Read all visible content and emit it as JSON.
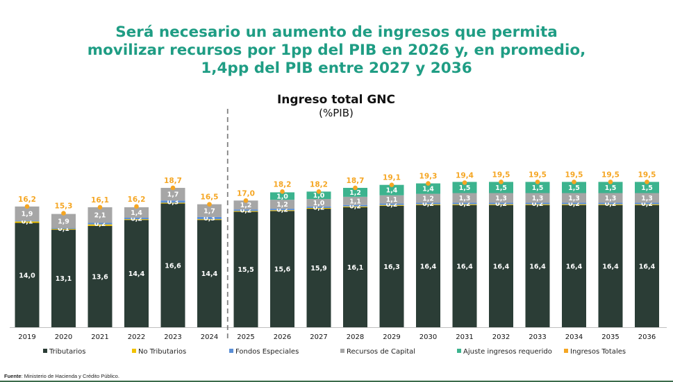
{
  "headline": {
    "lines": [
      "Será necesario un aumento de ingresos que permita",
      "movilizar recursos por 1pp del PIB en 2026 y, en promedio,",
      "1,4pp del PIB entre 2027 y 2036"
    ]
  },
  "footer": {
    "label": "Fuente",
    "text": ": Ministerio de Hacienda y Crédito Público."
  },
  "colors": {
    "headline": "#1f9d84",
    "tributarios": "#2b3d36",
    "no_tributarios": "#f2c200",
    "fondos": "#5b8fd6",
    "capital": "#a6a6a6",
    "ajuste": "#3cb38e",
    "totales": "#f5a623"
  },
  "chart_data": {
    "type": "bar",
    "stacked": true,
    "title": "Ingreso total GNC",
    "subtitle": "(%PIB)",
    "xlabel": "",
    "ylabel": "",
    "ylim": [
      0,
      21
    ],
    "grid": false,
    "legend_position": "bottom",
    "categories": [
      "2019",
      "2020",
      "2021",
      "2022",
      "2023",
      "2024",
      "2025",
      "2026",
      "2027",
      "2028",
      "2029",
      "2030",
      "2031",
      "2032",
      "2033",
      "2034",
      "2035",
      "2036"
    ],
    "series": [
      {
        "name": "Tributarios",
        "key": "tributarios",
        "values": [
          14.0,
          13.1,
          13.6,
          14.4,
          16.6,
          14.4,
          15.5,
          15.6,
          15.9,
          16.1,
          16.3,
          16.4,
          16.4,
          16.4,
          16.4,
          16.4,
          16.4,
          16.4
        ],
        "labels": [
          "14,0",
          "13,1",
          "13,6",
          "14,4",
          "16,6",
          "14,4",
          "15,5",
          "15,6",
          "15,9",
          "16,1",
          "16,3",
          "16,4",
          "16,4",
          "16,4",
          "16,4",
          "16,4",
          "16,4",
          "16,4"
        ]
      },
      {
        "name": "No Tributarios",
        "key": "no_tributarios",
        "values": [
          0.2,
          0.1,
          0.2,
          0.1,
          0.1,
          0.1,
          0.1,
          0.1,
          0.1,
          0.1,
          0.1,
          0.1,
          0.1,
          0.1,
          0.1,
          0.1,
          0.1,
          0.1
        ],
        "labels": [
          "",
          "",
          "",
          "",
          "",
          "",
          "",
          "",
          "",
          "",
          "",
          "",
          "",
          "",
          "",
          "",
          "",
          ""
        ]
      },
      {
        "name": "Fondos Especiales",
        "key": "fondos",
        "values": [
          0.1,
          0.1,
          0.2,
          0.2,
          0.3,
          0.3,
          0.2,
          0.2,
          0.2,
          0.2,
          0.2,
          0.2,
          0.2,
          0.2,
          0.2,
          0.2,
          0.2,
          0.2
        ],
        "labels": [
          "0,1",
          "0,1",
          "0,2",
          "0,2",
          "0,3",
          "0,3",
          "0,2",
          "0,2",
          "0,2",
          "0,2",
          "0,2",
          "0,2",
          "0,2",
          "0,2",
          "0,2",
          "0,2",
          "0,2",
          "0,2"
        ]
      },
      {
        "name": "Recursos de Capital",
        "key": "capital",
        "values": [
          1.9,
          1.9,
          2.1,
          1.4,
          1.7,
          1.7,
          1.2,
          1.2,
          1.0,
          1.1,
          1.1,
          1.2,
          1.3,
          1.3,
          1.3,
          1.3,
          1.3,
          1.3
        ],
        "labels": [
          "1,9",
          "1,9",
          "2,1",
          "1,4",
          "1,7",
          "1,7",
          "1,2",
          "1,2",
          "1,0",
          "1,1",
          "1,1",
          "1,2",
          "1,3",
          "1,3",
          "1,3",
          "1,3",
          "1,3",
          "1,3"
        ]
      },
      {
        "name": "Ajuste ingresos requerido",
        "key": "ajuste",
        "values": [
          0,
          0,
          0,
          0,
          0,
          0,
          0,
          1.0,
          1.0,
          1.2,
          1.4,
          1.4,
          1.5,
          1.5,
          1.5,
          1.5,
          1.5,
          1.5
        ],
        "labels": [
          "",
          "",
          "",
          "",
          "",
          "",
          "",
          "1,0",
          "1,0",
          "1,2",
          "1,4",
          "1,4",
          "1,5",
          "1,5",
          "1,5",
          "1,5",
          "1,5",
          "1,5"
        ]
      }
    ],
    "totals": {
      "name": "Ingresos Totales",
      "values": [
        16.2,
        15.3,
        16.1,
        16.2,
        18.7,
        16.5,
        17.0,
        18.2,
        18.2,
        18.7,
        19.1,
        19.3,
        19.4,
        19.5,
        19.5,
        19.5,
        19.5,
        19.5
      ],
      "labels": [
        "16,2",
        "15,3",
        "16,1",
        "16,2",
        "18,7",
        "16,5",
        "17,0",
        "18,2",
        "18,2",
        "18,7",
        "19,1",
        "19,3",
        "19,4",
        "19,5",
        "19,5",
        "19,5",
        "19,5",
        "19,5"
      ]
    },
    "divider_after": "2024",
    "legend": [
      {
        "key": "tributarios",
        "label": "Tributarios"
      },
      {
        "key": "no_tributarios",
        "label": "No Tributarios"
      },
      {
        "key": "fondos",
        "label": "Fondos Especiales"
      },
      {
        "key": "capital",
        "label": "Recursos de Capital"
      },
      {
        "key": "ajuste",
        "label": "Ajuste ingresos requerido"
      },
      {
        "key": "totales",
        "label": "Ingresos Totales"
      }
    ]
  }
}
